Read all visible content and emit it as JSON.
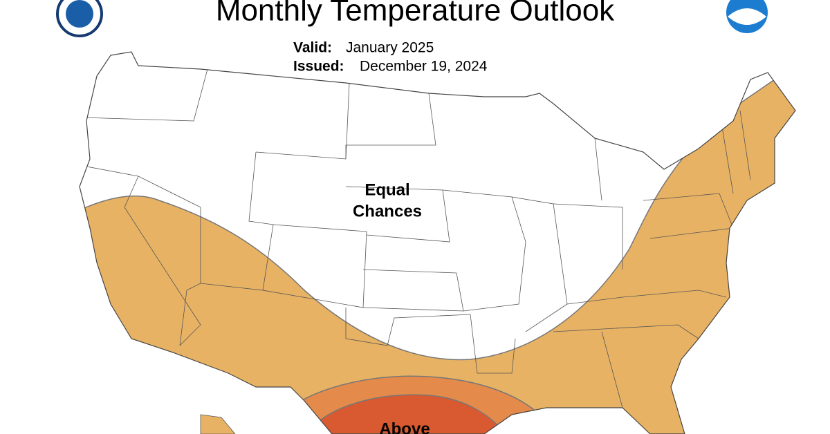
{
  "title": "Monthly Temperature Outlook",
  "valid": {
    "label": "Valid:",
    "value": "January 2025"
  },
  "issued": {
    "label": "Issued:",
    "value": "December 19, 2024"
  },
  "regions": [
    {
      "lines": [
        "Equal",
        "Chances"
      ]
    },
    {
      "lines": [
        "Above"
      ]
    }
  ]
}
